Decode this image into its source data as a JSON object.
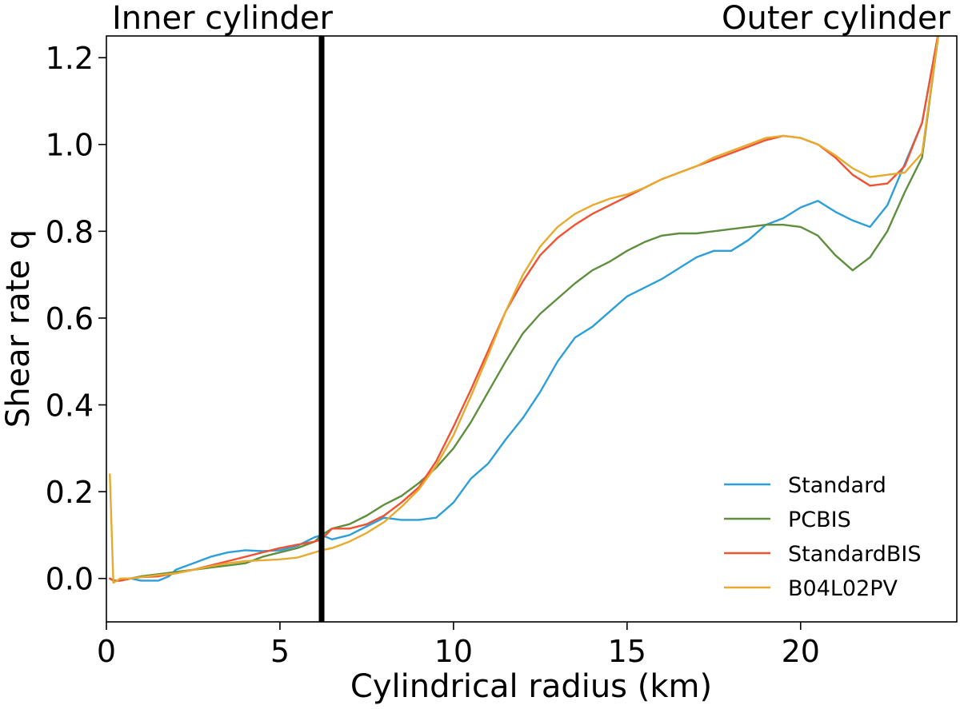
{
  "chart_data": {
    "type": "line",
    "title": "",
    "xlabel": "Cylindrical radius (km)",
    "ylabel": "Shear rate q",
    "xlim": [
      0,
      24.5
    ],
    "ylim": [
      -0.1,
      1.25
    ],
    "xticks": [
      0,
      5,
      10,
      15,
      20
    ],
    "yticks": [
      0.0,
      0.2,
      0.4,
      0.6,
      0.8,
      1.0,
      1.2
    ],
    "xtick_labels": [
      "0",
      "5",
      "10",
      "15",
      "20"
    ],
    "ytick_labels": [
      "0.0",
      "0.2",
      "0.4",
      "0.6",
      "0.8",
      "1.0",
      "1.2"
    ],
    "grid": false,
    "legend_position": "bottom-right",
    "annotations": [
      {
        "text": "Inner cylinder",
        "anchor": "top-left"
      },
      {
        "text": "Outer cylinder",
        "anchor": "top-right"
      }
    ],
    "vertical_line": {
      "x": 6.2,
      "color": "#000000"
    },
    "series": [
      {
        "name": "Standard",
        "color": "#2d9fd8",
        "points": [
          [
            0.1,
            0.0
          ],
          [
            0.2,
            -0.005
          ],
          [
            0.4,
            -0.005
          ],
          [
            0.7,
            0.0
          ],
          [
            1.0,
            -0.005
          ],
          [
            1.5,
            -0.005
          ],
          [
            1.8,
            0.005
          ],
          [
            2.0,
            0.02
          ],
          [
            2.5,
            0.035
          ],
          [
            3.0,
            0.05
          ],
          [
            3.5,
            0.06
          ],
          [
            4.0,
            0.065
          ],
          [
            4.5,
            0.063
          ],
          [
            5.0,
            0.065
          ],
          [
            5.5,
            0.075
          ],
          [
            6.0,
            0.095
          ],
          [
            6.2,
            0.1
          ],
          [
            6.5,
            0.09
          ],
          [
            7.0,
            0.1
          ],
          [
            7.5,
            0.12
          ],
          [
            8.0,
            0.14
          ],
          [
            8.5,
            0.135
          ],
          [
            9.0,
            0.135
          ],
          [
            9.5,
            0.14
          ],
          [
            10.0,
            0.175
          ],
          [
            10.5,
            0.23
          ],
          [
            11.0,
            0.265
          ],
          [
            11.5,
            0.32
          ],
          [
            12.0,
            0.37
          ],
          [
            12.5,
            0.43
          ],
          [
            13.0,
            0.5
          ],
          [
            13.5,
            0.555
          ],
          [
            14.0,
            0.58
          ],
          [
            14.5,
            0.615
          ],
          [
            15.0,
            0.65
          ],
          [
            15.5,
            0.67
          ],
          [
            16.0,
            0.69
          ],
          [
            16.5,
            0.715
          ],
          [
            17.0,
            0.74
          ],
          [
            17.5,
            0.755
          ],
          [
            18.0,
            0.755
          ],
          [
            18.5,
            0.78
          ],
          [
            19.0,
            0.815
          ],
          [
            19.5,
            0.83
          ],
          [
            20.0,
            0.855
          ],
          [
            20.5,
            0.87
          ],
          [
            21.0,
            0.845
          ],
          [
            21.5,
            0.825
          ],
          [
            22.0,
            0.81
          ],
          [
            22.5,
            0.86
          ],
          [
            23.0,
            0.955
          ],
          [
            23.5,
            1.05
          ],
          [
            24.0,
            1.27
          ]
        ]
      },
      {
        "name": "PCBIS",
        "color": "#5f8f3e",
        "points": [
          [
            0.1,
            0.0
          ],
          [
            0.2,
            -0.005
          ],
          [
            0.4,
            -0.005
          ],
          [
            0.7,
            0.0
          ],
          [
            1.0,
            0.005
          ],
          [
            1.5,
            0.01
          ],
          [
            2.0,
            0.015
          ],
          [
            2.5,
            0.02
          ],
          [
            3.0,
            0.025
          ],
          [
            3.5,
            0.03
          ],
          [
            4.0,
            0.035
          ],
          [
            4.5,
            0.05
          ],
          [
            5.0,
            0.06
          ],
          [
            5.5,
            0.07
          ],
          [
            6.0,
            0.085
          ],
          [
            6.2,
            0.1
          ],
          [
            6.5,
            0.115
          ],
          [
            7.0,
            0.125
          ],
          [
            7.5,
            0.145
          ],
          [
            8.0,
            0.17
          ],
          [
            8.5,
            0.19
          ],
          [
            9.0,
            0.22
          ],
          [
            9.5,
            0.255
          ],
          [
            10.0,
            0.3
          ],
          [
            10.5,
            0.36
          ],
          [
            11.0,
            0.43
          ],
          [
            11.5,
            0.5
          ],
          [
            12.0,
            0.565
          ],
          [
            12.5,
            0.61
          ],
          [
            13.0,
            0.645
          ],
          [
            13.5,
            0.68
          ],
          [
            14.0,
            0.71
          ],
          [
            14.5,
            0.73
          ],
          [
            15.0,
            0.755
          ],
          [
            15.5,
            0.775
          ],
          [
            16.0,
            0.79
          ],
          [
            16.5,
            0.795
          ],
          [
            17.0,
            0.795
          ],
          [
            17.5,
            0.8
          ],
          [
            18.0,
            0.805
          ],
          [
            18.5,
            0.81
          ],
          [
            19.0,
            0.815
          ],
          [
            19.5,
            0.815
          ],
          [
            20.0,
            0.81
          ],
          [
            20.5,
            0.79
          ],
          [
            21.0,
            0.745
          ],
          [
            21.5,
            0.71
          ],
          [
            22.0,
            0.74
          ],
          [
            22.5,
            0.8
          ],
          [
            23.0,
            0.89
          ],
          [
            23.5,
            0.97
          ],
          [
            24.0,
            1.27
          ]
        ]
      },
      {
        "name": "StandardBIS",
        "color": "#f05333",
        "points": [
          [
            0.1,
            0.0
          ],
          [
            0.2,
            -0.005
          ],
          [
            0.4,
            -0.005
          ],
          [
            0.7,
            0.0
          ],
          [
            1.0,
            0.003
          ],
          [
            1.5,
            0.005
          ],
          [
            2.0,
            0.012
          ],
          [
            2.5,
            0.02
          ],
          [
            3.0,
            0.03
          ],
          [
            3.5,
            0.04
          ],
          [
            4.0,
            0.05
          ],
          [
            4.5,
            0.06
          ],
          [
            5.0,
            0.07
          ],
          [
            5.5,
            0.078
          ],
          [
            6.0,
            0.085
          ],
          [
            6.2,
            0.09
          ],
          [
            6.5,
            0.115
          ],
          [
            7.0,
            0.115
          ],
          [
            7.5,
            0.125
          ],
          [
            8.0,
            0.145
          ],
          [
            8.5,
            0.175
          ],
          [
            9.0,
            0.21
          ],
          [
            9.5,
            0.27
          ],
          [
            10.0,
            0.35
          ],
          [
            10.5,
            0.435
          ],
          [
            11.0,
            0.525
          ],
          [
            11.5,
            0.615
          ],
          [
            12.0,
            0.685
          ],
          [
            12.5,
            0.745
          ],
          [
            13.0,
            0.785
          ],
          [
            13.5,
            0.815
          ],
          [
            14.0,
            0.84
          ],
          [
            14.5,
            0.86
          ],
          [
            15.0,
            0.88
          ],
          [
            15.5,
            0.9
          ],
          [
            16.0,
            0.92
          ],
          [
            16.5,
            0.935
          ],
          [
            17.0,
            0.95
          ],
          [
            17.5,
            0.965
          ],
          [
            18.0,
            0.98
          ],
          [
            18.5,
            0.995
          ],
          [
            19.0,
            1.01
          ],
          [
            19.5,
            1.02
          ],
          [
            20.0,
            1.015
          ],
          [
            20.5,
            1.0
          ],
          [
            21.0,
            0.97
          ],
          [
            21.5,
            0.93
          ],
          [
            22.0,
            0.905
          ],
          [
            22.5,
            0.91
          ],
          [
            23.0,
            0.95
          ],
          [
            23.5,
            1.05
          ],
          [
            24.0,
            1.27
          ]
        ]
      },
      {
        "name": "B04L02PV",
        "color": "#e8aa2e",
        "points": [
          [
            0.1,
            0.24
          ],
          [
            0.2,
            -0.01
          ],
          [
            0.4,
            0.0
          ],
          [
            0.7,
            0.0
          ],
          [
            1.0,
            0.003
          ],
          [
            1.5,
            0.008
          ],
          [
            2.0,
            0.012
          ],
          [
            2.5,
            0.02
          ],
          [
            3.0,
            0.028
          ],
          [
            3.5,
            0.035
          ],
          [
            4.0,
            0.04
          ],
          [
            4.5,
            0.042
          ],
          [
            5.0,
            0.044
          ],
          [
            5.5,
            0.048
          ],
          [
            6.0,
            0.06
          ],
          [
            6.2,
            0.065
          ],
          [
            6.5,
            0.07
          ],
          [
            7.0,
            0.085
          ],
          [
            7.5,
            0.105
          ],
          [
            8.0,
            0.13
          ],
          [
            8.5,
            0.165
          ],
          [
            9.0,
            0.205
          ],
          [
            9.5,
            0.26
          ],
          [
            10.0,
            0.33
          ],
          [
            10.5,
            0.42
          ],
          [
            11.0,
            0.515
          ],
          [
            11.5,
            0.615
          ],
          [
            12.0,
            0.7
          ],
          [
            12.5,
            0.765
          ],
          [
            13.0,
            0.81
          ],
          [
            13.5,
            0.84
          ],
          [
            14.0,
            0.86
          ],
          [
            14.5,
            0.875
          ],
          [
            15.0,
            0.885
          ],
          [
            15.5,
            0.9
          ],
          [
            16.0,
            0.92
          ],
          [
            16.5,
            0.935
          ],
          [
            17.0,
            0.95
          ],
          [
            17.5,
            0.97
          ],
          [
            18.0,
            0.985
          ],
          [
            18.5,
            1.0
          ],
          [
            19.0,
            1.015
          ],
          [
            19.5,
            1.02
          ],
          [
            20.0,
            1.015
          ],
          [
            20.5,
            1.0
          ],
          [
            21.0,
            0.975
          ],
          [
            21.5,
            0.945
          ],
          [
            22.0,
            0.925
          ],
          [
            22.5,
            0.93
          ],
          [
            23.0,
            0.935
          ],
          [
            23.5,
            0.98
          ],
          [
            24.0,
            1.27
          ]
        ]
      }
    ]
  }
}
